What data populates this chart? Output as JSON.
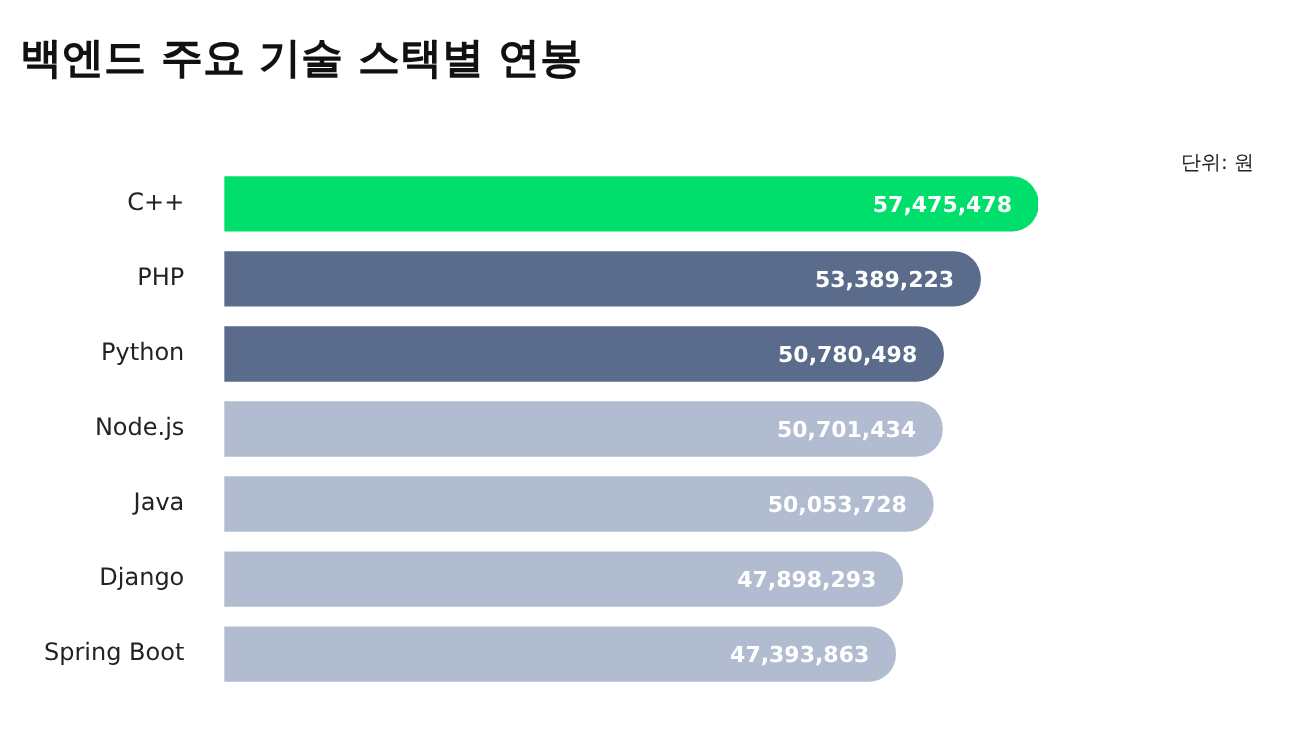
{
  "chart_data": {
    "type": "bar",
    "orientation": "horizontal",
    "title": "백엔드 주요 기술 스택별 연봉",
    "annotations": [
      "단위: 원"
    ],
    "categories": [
      "C++",
      "PHP",
      "Python",
      "Node.js",
      "Java",
      "Django",
      "Spring Boot"
    ],
    "values": [
      57475478,
      53389223,
      50780498,
      50701434,
      50053728,
      47898293,
      47393863
    ],
    "colors": [
      "#00df6c",
      "#5a6b8c",
      "#5a6b8c",
      "#b1bcd1",
      "#b1bcd1",
      "#b1bcd1",
      "#b1bcd1"
    ],
    "value_labels": [
      "57,475,478",
      "53,389,223",
      "50,780,498",
      "50,701,434",
      "50,053,728",
      "47,898,293",
      "47,393,863"
    ],
    "legend": false
  }
}
